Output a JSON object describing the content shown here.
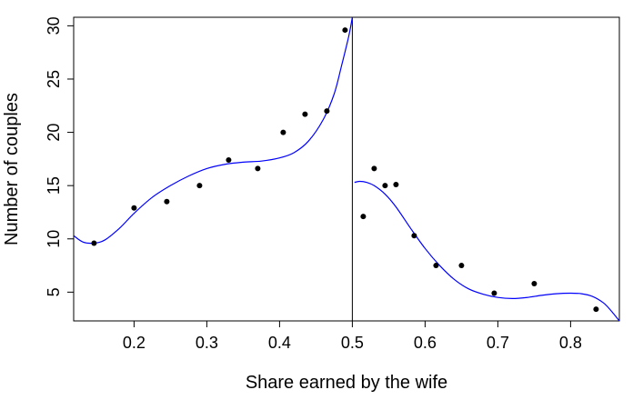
{
  "chart_data": {
    "type": "scatter",
    "title": "",
    "xlabel": "Share earned by the wife",
    "ylabel": "Number of couples",
    "xlim": [
      0.117,
      0.867
    ],
    "ylim": [
      2.3,
      30.8
    ],
    "xticks": [
      0.2,
      0.3,
      0.4,
      0.5,
      0.6,
      0.7,
      0.8
    ],
    "xtick_labels": [
      "0.2",
      "0.3",
      "0.4",
      "0.5",
      "0.6",
      "0.7",
      "0.8"
    ],
    "yticks": [
      5,
      10,
      15,
      20,
      25,
      30
    ],
    "ytick_labels": [
      "5",
      "10",
      "15",
      "20",
      "25",
      "30"
    ],
    "grid": false,
    "threshold_line_x": 0.5,
    "point_color": "#000000",
    "fit_color": "#0000ff",
    "points": [
      {
        "x": 0.145,
        "y": 9.6
      },
      {
        "x": 0.2,
        "y": 12.9
      },
      {
        "x": 0.245,
        "y": 13.5
      },
      {
        "x": 0.29,
        "y": 15.0
      },
      {
        "x": 0.33,
        "y": 17.4
      },
      {
        "x": 0.37,
        "y": 16.6
      },
      {
        "x": 0.405,
        "y": 20.0
      },
      {
        "x": 0.435,
        "y": 21.7
      },
      {
        "x": 0.465,
        "y": 22.0
      },
      {
        "x": 0.49,
        "y": 29.6
      },
      {
        "x": 0.515,
        "y": 12.1
      },
      {
        "x": 0.53,
        "y": 16.6
      },
      {
        "x": 0.545,
        "y": 15.0
      },
      {
        "x": 0.56,
        "y": 15.1
      },
      {
        "x": 0.585,
        "y": 10.3
      },
      {
        "x": 0.615,
        "y": 7.5
      },
      {
        "x": 0.65,
        "y": 7.5
      },
      {
        "x": 0.695,
        "y": 4.9
      },
      {
        "x": 0.75,
        "y": 5.8
      },
      {
        "x": 0.835,
        "y": 3.4
      }
    ],
    "fit_left": [
      [
        0.117,
        10.3
      ],
      [
        0.13,
        9.7
      ],
      [
        0.145,
        9.6
      ],
      [
        0.16,
        9.9
      ],
      [
        0.18,
        11.0
      ],
      [
        0.2,
        12.4
      ],
      [
        0.225,
        13.9
      ],
      [
        0.25,
        15.0
      ],
      [
        0.275,
        15.9
      ],
      [
        0.3,
        16.6
      ],
      [
        0.325,
        17.0
      ],
      [
        0.35,
        17.2
      ],
      [
        0.375,
        17.3
      ],
      [
        0.4,
        17.6
      ],
      [
        0.42,
        18.1
      ],
      [
        0.44,
        19.2
      ],
      [
        0.46,
        21.2
      ],
      [
        0.475,
        23.6
      ],
      [
        0.485,
        26.2
      ],
      [
        0.495,
        29.0
      ],
      [
        0.5,
        30.8
      ]
    ],
    "fit_right": [
      [
        0.503,
        15.3
      ],
      [
        0.51,
        15.4
      ],
      [
        0.52,
        15.3
      ],
      [
        0.53,
        15.0
      ],
      [
        0.545,
        14.2
      ],
      [
        0.56,
        13.0
      ],
      [
        0.58,
        11.0
      ],
      [
        0.6,
        9.1
      ],
      [
        0.62,
        7.5
      ],
      [
        0.64,
        6.2
      ],
      [
        0.66,
        5.3
      ],
      [
        0.68,
        4.8
      ],
      [
        0.7,
        4.5
      ],
      [
        0.72,
        4.4
      ],
      [
        0.74,
        4.5
      ],
      [
        0.76,
        4.7
      ],
      [
        0.78,
        4.85
      ],
      [
        0.8,
        4.9
      ],
      [
        0.815,
        4.85
      ],
      [
        0.83,
        4.6
      ],
      [
        0.845,
        4.0
      ],
      [
        0.855,
        3.3
      ],
      [
        0.867,
        2.3
      ]
    ]
  }
}
